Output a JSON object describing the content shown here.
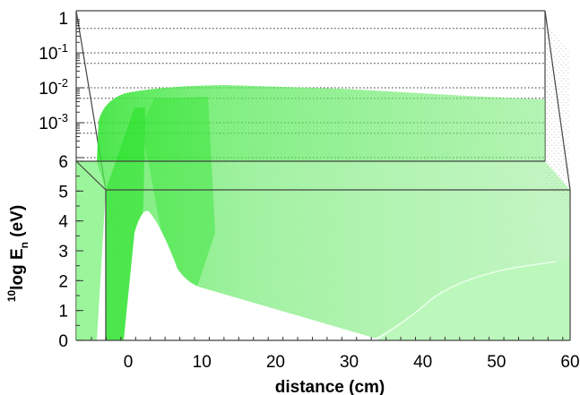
{
  "chart_data": {
    "type": "area",
    "plot_style": "3d-surface",
    "surface_color": "#33ee33",
    "x_axis": {
      "title": "distance (cm)",
      "range": [
        -5,
        60
      ],
      "ticks": [
        {
          "value": 0,
          "label": "0"
        },
        {
          "value": 10,
          "label": "10"
        },
        {
          "value": 20,
          "label": "20"
        },
        {
          "value": 30,
          "label": "30"
        },
        {
          "value": 40,
          "label": "40"
        },
        {
          "value": 50,
          "label": "50"
        },
        {
          "value": 60,
          "label": "60"
        }
      ]
    },
    "y_axis": {
      "title": {
        "sup": "10",
        "main": "log E",
        "sub": "n",
        "unit": " (eV)"
      },
      "range": [
        0,
        6
      ],
      "ticks": [
        {
          "value": 0,
          "label": "0"
        },
        {
          "value": 1,
          "label": "1"
        },
        {
          "value": 2,
          "label": "2"
        },
        {
          "value": 3,
          "label": "3"
        },
        {
          "value": 4,
          "label": "4"
        },
        {
          "value": 5,
          "label": "5"
        },
        {
          "value": 6,
          "label": "6"
        }
      ]
    },
    "z_axis": {
      "scale": "log",
      "range": [
        0.0001,
        1
      ],
      "ticks": [
        {
          "value": 1,
          "base": "1",
          "exp": ""
        },
        {
          "value": 0.1,
          "base": "10",
          "exp": "-1"
        },
        {
          "value": 0.01,
          "base": "10",
          "exp": "-2"
        },
        {
          "value": 0.001,
          "base": "10",
          "exp": "-3"
        }
      ]
    },
    "grid": "dotted on back wall"
  }
}
